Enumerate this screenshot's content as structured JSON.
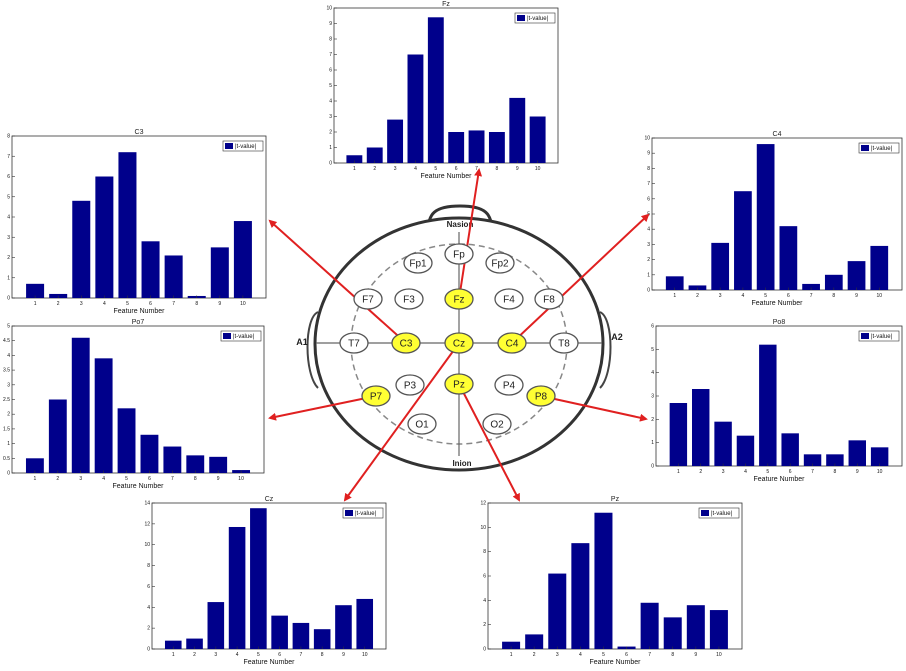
{
  "legend_label": "|t-value|",
  "xlabel": "Feature Number",
  "colors": {
    "bar": "#00008b",
    "arrow": "#e02020",
    "highlight": "#ffff33",
    "electrode": "#ffffff"
  },
  "head": {
    "nasion": "Nasion",
    "inion": "Inion",
    "left_ear": "A1",
    "right_ear": "A2",
    "electrodes": [
      {
        "id": "fp",
        "label": "Fp",
        "highlighted": false
      },
      {
        "id": "fp1",
        "label": "Fp1",
        "highlighted": false
      },
      {
        "id": "fp2",
        "label": "Fp2",
        "highlighted": false
      },
      {
        "id": "f7",
        "label": "F7",
        "highlighted": false
      },
      {
        "id": "f3",
        "label": "F3",
        "highlighted": false
      },
      {
        "id": "fz",
        "label": "Fz",
        "highlighted": true
      },
      {
        "id": "f4",
        "label": "F4",
        "highlighted": false
      },
      {
        "id": "f8",
        "label": "F8",
        "highlighted": false
      },
      {
        "id": "t7",
        "label": "T7",
        "highlighted": false
      },
      {
        "id": "c3",
        "label": "C3",
        "highlighted": true
      },
      {
        "id": "cz",
        "label": "Cz",
        "highlighted": true
      },
      {
        "id": "c4",
        "label": "C4",
        "highlighted": true
      },
      {
        "id": "t8",
        "label": "T8",
        "highlighted": false
      },
      {
        "id": "p7",
        "label": "P7",
        "highlighted": true
      },
      {
        "id": "p3",
        "label": "P3",
        "highlighted": false
      },
      {
        "id": "pz",
        "label": "Pz",
        "highlighted": true
      },
      {
        "id": "p4",
        "label": "P4",
        "highlighted": false
      },
      {
        "id": "p8",
        "label": "P8",
        "highlighted": true
      },
      {
        "id": "o1",
        "label": "O1",
        "highlighted": false
      },
      {
        "id": "o2",
        "label": "O2",
        "highlighted": false
      }
    ]
  },
  "chart_data": [
    {
      "id": "fz",
      "type": "bar",
      "title": "Fz",
      "xlabel": "Feature Number",
      "legend": "|t-value|",
      "categories": [
        "1",
        "2",
        "3",
        "4",
        "5",
        "6",
        "7",
        "8",
        "9",
        "10"
      ],
      "values": [
        0.5,
        1.0,
        2.8,
        7.0,
        9.4,
        2.0,
        2.1,
        2.0,
        4.2,
        3.0
      ],
      "ylim": [
        0,
        10
      ],
      "yticks": [
        0,
        1,
        2,
        3,
        4,
        5,
        6,
        7,
        8,
        9,
        10
      ]
    },
    {
      "id": "c3",
      "type": "bar",
      "title": "C3",
      "xlabel": "Feature Number",
      "legend": "|t-value|",
      "categories": [
        "1",
        "2",
        "3",
        "4",
        "5",
        "6",
        "7",
        "8",
        "9",
        "10"
      ],
      "values": [
        0.7,
        0.2,
        4.8,
        6.0,
        7.2,
        2.8,
        2.1,
        0.1,
        2.5,
        3.8
      ],
      "ylim": [
        0,
        8
      ],
      "yticks": [
        0,
        1,
        2,
        3,
        4,
        5,
        6,
        7,
        8
      ]
    },
    {
      "id": "c4",
      "type": "bar",
      "title": "C4",
      "xlabel": "Feature Number",
      "legend": "|t-value|",
      "categories": [
        "1",
        "2",
        "3",
        "4",
        "5",
        "6",
        "7",
        "8",
        "9",
        "10"
      ],
      "values": [
        0.9,
        0.3,
        3.1,
        6.5,
        9.6,
        4.2,
        0.4,
        1.0,
        1.9,
        2.9
      ],
      "ylim": [
        0,
        10
      ],
      "yticks": [
        0,
        1,
        2,
        3,
        4,
        5,
        6,
        7,
        8,
        9,
        10
      ]
    },
    {
      "id": "po7",
      "type": "bar",
      "title": "Po7",
      "xlabel": "Feature Number",
      "legend": "|t-value|",
      "categories": [
        "1",
        "2",
        "3",
        "4",
        "5",
        "6",
        "7",
        "8",
        "9",
        "10"
      ],
      "values": [
        0.5,
        2.5,
        4.6,
        3.9,
        2.2,
        1.3,
        0.9,
        0.6,
        0.55,
        0.1
      ],
      "ylim": [
        0,
        5
      ],
      "yticks": [
        0,
        0.5,
        1,
        1.5,
        2,
        2.5,
        3,
        3.5,
        4,
        4.5,
        5
      ]
    },
    {
      "id": "po8",
      "type": "bar",
      "title": "Po8",
      "xlabel": "Feature Number",
      "legend": "|t-value|",
      "categories": [
        "1",
        "2",
        "3",
        "4",
        "5",
        "6",
        "7",
        "8",
        "9",
        "10"
      ],
      "values": [
        2.7,
        3.3,
        1.9,
        1.3,
        5.2,
        1.4,
        0.5,
        0.5,
        1.1,
        0.8
      ],
      "ylim": [
        0,
        6
      ],
      "yticks": [
        0,
        1,
        2,
        3,
        4,
        5,
        6
      ]
    },
    {
      "id": "cz",
      "type": "bar",
      "title": "Cz",
      "xlabel": "Feature Number",
      "legend": "|t-value|",
      "categories": [
        "1",
        "2",
        "3",
        "4",
        "5",
        "6",
        "7",
        "8",
        "9",
        "10"
      ],
      "values": [
        0.8,
        1.0,
        4.5,
        11.7,
        13.5,
        3.2,
        2.5,
        1.9,
        4.2,
        4.8
      ],
      "ylim": [
        0,
        14
      ],
      "yticks": [
        0,
        2,
        4,
        6,
        8,
        10,
        12,
        14
      ]
    },
    {
      "id": "pz",
      "type": "bar",
      "title": "Pz",
      "xlabel": "Feature Number",
      "legend": "|t-value|",
      "categories": [
        "1",
        "2",
        "3",
        "4",
        "5",
        "6",
        "7",
        "8",
        "9",
        "10"
      ],
      "values": [
        0.6,
        1.2,
        6.2,
        8.7,
        11.2,
        0.2,
        3.8,
        2.6,
        3.6,
        3.2
      ],
      "ylim": [
        0,
        12
      ],
      "yticks": [
        0,
        2,
        4,
        6,
        8,
        10,
        12
      ]
    }
  ]
}
